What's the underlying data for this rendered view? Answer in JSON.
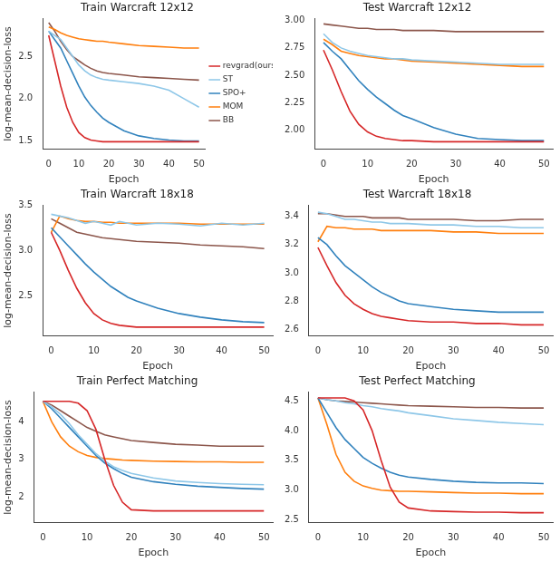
{
  "chart_data": [
    {
      "type": "line",
      "title": "Train Warcraft 12x12",
      "xlabel": "Epoch",
      "ylabel": "log-mean-decision-loss",
      "x": [
        0,
        2,
        4,
        6,
        8,
        10,
        12,
        14,
        16,
        18,
        20,
        25,
        30,
        35,
        40,
        45,
        50
      ],
      "xlim": [
        -2,
        52
      ],
      "xticks": [
        0,
        10,
        20,
        30,
        40,
        50
      ],
      "ylim": [
        1.4,
        2.95
      ],
      "yticks": [
        1.5,
        {
          "value": 2,
          "label": "2.0"
        },
        2.5
      ],
      "grid": false,
      "legend": "right",
      "series": [
        {
          "name": "revgrad(ours)",
          "color": "#d62728",
          "values": [
            2.75,
            2.45,
            2.15,
            1.9,
            1.72,
            1.6,
            1.54,
            1.51,
            1.5,
            1.49,
            1.49,
            1.49,
            1.49,
            1.49,
            1.49,
            1.49,
            1.49
          ]
        },
        {
          "name": "ST",
          "color": "#8ec7e8",
          "values": [
            2.8,
            2.75,
            2.7,
            2.6,
            2.5,
            2.4,
            2.33,
            2.28,
            2.25,
            2.23,
            2.22,
            2.2,
            2.18,
            2.15,
            2.1,
            2.0,
            1.9
          ]
        },
        {
          "name": "SPO+",
          "color": "#3182bd",
          "values": [
            2.8,
            2.7,
            2.6,
            2.45,
            2.3,
            2.15,
            2.02,
            1.92,
            1.84,
            1.77,
            1.72,
            1.62,
            1.56,
            1.53,
            1.51,
            1.5,
            1.5
          ]
        },
        {
          "name": "MOM",
          "color": "#ff7f0e",
          "values": [
            2.85,
            2.82,
            2.78,
            2.75,
            2.73,
            2.71,
            2.7,
            2.69,
            2.68,
            2.68,
            2.67,
            2.65,
            2.63,
            2.62,
            2.61,
            2.6,
            2.6
          ]
        },
        {
          "name": "BB",
          "color": "#8c564b",
          "values": [
            2.9,
            2.8,
            2.68,
            2.58,
            2.5,
            2.45,
            2.4,
            2.36,
            2.33,
            2.31,
            2.3,
            2.28,
            2.26,
            2.25,
            2.24,
            2.23,
            2.22
          ]
        }
      ]
    },
    {
      "type": "line",
      "title": "Test Warcraft 12x12",
      "xlabel": "Epoch",
      "x": [
        0,
        2,
        4,
        6,
        8,
        10,
        12,
        14,
        16,
        18,
        20,
        25,
        30,
        35,
        40,
        45,
        50
      ],
      "xlim": [
        -2,
        52
      ],
      "xticks": [
        0,
        10,
        20,
        30,
        40,
        50
      ],
      "ylim": [
        1.82,
        3.02
      ],
      "yticks": [
        {
          "value": 2,
          "label": "2.00"
        },
        {
          "value": 2.25,
          "label": "2.25"
        },
        {
          "value": 2.5,
          "label": "2.50"
        },
        {
          "value": 2.75,
          "label": "2.75"
        },
        {
          "value": 3,
          "label": "3.00"
        }
      ],
      "grid": false,
      "series": [
        {
          "name": "revgrad(ours)",
          "color": "#d62728",
          "values": [
            2.73,
            2.55,
            2.35,
            2.17,
            2.05,
            1.98,
            1.94,
            1.92,
            1.91,
            1.9,
            1.9,
            1.89,
            1.89,
            1.89,
            1.89,
            1.89,
            1.89
          ]
        },
        {
          "name": "ST",
          "color": "#8ec7e8",
          "values": [
            2.88,
            2.8,
            2.75,
            2.72,
            2.7,
            2.68,
            2.67,
            2.66,
            2.65,
            2.65,
            2.64,
            2.63,
            2.62,
            2.61,
            2.6,
            2.6,
            2.6
          ]
        },
        {
          "name": "SPO+",
          "color": "#3182bd",
          "values": [
            2.8,
            2.72,
            2.65,
            2.55,
            2.45,
            2.37,
            2.3,
            2.24,
            2.18,
            2.13,
            2.1,
            2.02,
            1.96,
            1.92,
            1.91,
            1.9,
            1.9
          ]
        },
        {
          "name": "MOM",
          "color": "#ff7f0e",
          "values": [
            2.83,
            2.78,
            2.72,
            2.7,
            2.68,
            2.67,
            2.66,
            2.65,
            2.65,
            2.64,
            2.63,
            2.62,
            2.61,
            2.6,
            2.59,
            2.58,
            2.58
          ]
        },
        {
          "name": "BB",
          "color": "#8c564b",
          "values": [
            2.97,
            2.96,
            2.95,
            2.94,
            2.93,
            2.93,
            2.92,
            2.92,
            2.92,
            2.91,
            2.91,
            2.91,
            2.9,
            2.9,
            2.9,
            2.9,
            2.9
          ]
        }
      ]
    },
    {
      "type": "line",
      "title": "Train Warcraft 18x18",
      "xlabel": "Epoch",
      "ylabel": "log-mean-decision-loss",
      "x": [
        0,
        2,
        4,
        6,
        8,
        10,
        12,
        14,
        16,
        18,
        20,
        25,
        30,
        35,
        40,
        45,
        50
      ],
      "xlim": [
        -2,
        52
      ],
      "xticks": [
        0,
        10,
        20,
        30,
        40,
        50
      ],
      "ylim": [
        2.05,
        3.5
      ],
      "yticks": [
        2.5,
        {
          "value": 3,
          "label": "3.0"
        },
        3.5
      ],
      "grid": false,
      "series": [
        {
          "name": "revgrad(ours)",
          "color": "#d62728",
          "values": [
            3.2,
            3.0,
            2.78,
            2.58,
            2.42,
            2.3,
            2.23,
            2.19,
            2.17,
            2.16,
            2.15,
            2.15,
            2.15,
            2.15,
            2.15,
            2.15,
            2.15
          ]
        },
        {
          "name": "ST",
          "color": "#8ec7e8",
          "values": [
            3.4,
            3.38,
            3.36,
            3.33,
            3.3,
            3.32,
            3.3,
            3.28,
            3.32,
            3.3,
            3.28,
            3.3,
            3.29,
            3.27,
            3.3,
            3.28,
            3.3
          ]
        },
        {
          "name": "SPO+",
          "color": "#3182bd",
          "values": [
            3.25,
            3.15,
            3.05,
            2.95,
            2.85,
            2.76,
            2.68,
            2.6,
            2.54,
            2.48,
            2.44,
            2.36,
            2.3,
            2.26,
            2.23,
            2.21,
            2.2
          ]
        },
        {
          "name": "MOM",
          "color": "#ff7f0e",
          "values": [
            3.2,
            3.38,
            3.35,
            3.33,
            3.32,
            3.32,
            3.31,
            3.31,
            3.3,
            3.3,
            3.3,
            3.3,
            3.3,
            3.29,
            3.29,
            3.29,
            3.29
          ]
        },
        {
          "name": "BB",
          "color": "#8c564b",
          "values": [
            3.35,
            3.3,
            3.25,
            3.2,
            3.18,
            3.16,
            3.14,
            3.13,
            3.12,
            3.11,
            3.1,
            3.09,
            3.08,
            3.06,
            3.05,
            3.04,
            3.02
          ]
        }
      ]
    },
    {
      "type": "line",
      "title": "Test Warcraft 18x18",
      "xlabel": "Epoch",
      "x": [
        0,
        2,
        4,
        6,
        8,
        10,
        12,
        14,
        16,
        18,
        20,
        25,
        30,
        35,
        40,
        45,
        50
      ],
      "xlim": [
        -2,
        52
      ],
      "xticks": [
        0,
        10,
        20,
        30,
        40,
        50
      ],
      "ylim": [
        2.55,
        3.48
      ],
      "yticks": [
        2.6,
        2.8,
        {
          "value": 3,
          "label": "3.0"
        },
        3.2,
        3.4
      ],
      "grid": false,
      "series": [
        {
          "name": "revgrad(ours)",
          "color": "#d62728",
          "values": [
            3.18,
            3.05,
            2.93,
            2.84,
            2.78,
            2.74,
            2.71,
            2.69,
            2.68,
            2.67,
            2.66,
            2.65,
            2.65,
            2.64,
            2.64,
            2.63,
            2.63
          ]
        },
        {
          "name": "ST",
          "color": "#8ec7e8",
          "values": [
            3.43,
            3.42,
            3.4,
            3.38,
            3.38,
            3.37,
            3.36,
            3.36,
            3.35,
            3.35,
            3.35,
            3.34,
            3.34,
            3.33,
            3.33,
            3.32,
            3.32
          ]
        },
        {
          "name": "SPO+",
          "color": "#3182bd",
          "values": [
            3.25,
            3.2,
            3.12,
            3.05,
            3.0,
            2.95,
            2.9,
            2.86,
            2.83,
            2.8,
            2.78,
            2.76,
            2.74,
            2.73,
            2.72,
            2.72,
            2.72
          ]
        },
        {
          "name": "MOM",
          "color": "#ff7f0e",
          "values": [
            3.22,
            3.33,
            3.32,
            3.32,
            3.31,
            3.31,
            3.31,
            3.3,
            3.3,
            3.3,
            3.3,
            3.3,
            3.29,
            3.29,
            3.28,
            3.28,
            3.28
          ]
        },
        {
          "name": "BB",
          "color": "#8c564b",
          "values": [
            3.42,
            3.42,
            3.41,
            3.4,
            3.4,
            3.4,
            3.39,
            3.39,
            3.39,
            3.39,
            3.38,
            3.38,
            3.38,
            3.37,
            3.37,
            3.38,
            3.38
          ]
        }
      ]
    },
    {
      "type": "line",
      "title": "Train Perfect Matching",
      "xlabel": "Epoch",
      "ylabel": "log-mean-decision-loss",
      "x": [
        0,
        2,
        4,
        6,
        8,
        10,
        12,
        14,
        16,
        18,
        20,
        25,
        30,
        35,
        40,
        45,
        50
      ],
      "xlim": [
        -2,
        52
      ],
      "xticks": [
        0,
        10,
        20,
        30,
        40,
        50
      ],
      "ylim": [
        1.3,
        4.8
      ],
      "yticks": [
        2,
        3,
        4
      ],
      "grid": false,
      "series": [
        {
          "name": "revgrad(ours)",
          "color": "#d62728",
          "values": [
            4.55,
            4.55,
            4.55,
            4.55,
            4.5,
            4.3,
            3.8,
            3.0,
            2.3,
            1.85,
            1.65,
            1.62,
            1.62,
            1.62,
            1.62,
            1.62,
            1.62
          ]
        },
        {
          "name": "ST",
          "color": "#8ec7e8",
          "values": [
            4.55,
            4.4,
            4.2,
            3.95,
            3.65,
            3.4,
            3.15,
            2.95,
            2.8,
            2.7,
            2.62,
            2.5,
            2.42,
            2.38,
            2.35,
            2.33,
            2.32
          ]
        },
        {
          "name": "SPO+",
          "color": "#3182bd",
          "values": [
            4.55,
            4.35,
            4.1,
            3.85,
            3.6,
            3.35,
            3.1,
            2.9,
            2.75,
            2.62,
            2.52,
            2.4,
            2.33,
            2.28,
            2.25,
            2.22,
            2.2
          ]
        },
        {
          "name": "MOM",
          "color": "#ff7f0e",
          "values": [
            4.55,
            4.0,
            3.6,
            3.35,
            3.2,
            3.1,
            3.05,
            3.02,
            3.0,
            2.98,
            2.97,
            2.95,
            2.94,
            2.93,
            2.93,
            2.92,
            2.92
          ]
        },
        {
          "name": "BB",
          "color": "#8c564b",
          "values": [
            4.55,
            4.45,
            4.3,
            4.15,
            4.0,
            3.85,
            3.75,
            3.65,
            3.6,
            3.55,
            3.5,
            3.45,
            3.4,
            3.38,
            3.35,
            3.35,
            3.35
          ]
        }
      ]
    },
    {
      "type": "line",
      "title": "Test Perfect Matching",
      "xlabel": "Epoch",
      "x": [
        0,
        2,
        4,
        6,
        8,
        10,
        12,
        14,
        16,
        18,
        20,
        25,
        30,
        35,
        40,
        45,
        50
      ],
      "xlim": [
        -2,
        52
      ],
      "xticks": [
        0,
        10,
        20,
        30,
        40,
        50
      ],
      "ylim": [
        2.45,
        4.65
      ],
      "yticks": [
        2.5,
        {
          "value": 3,
          "label": "3.0"
        },
        3.5,
        {
          "value": 4,
          "label": "4.0"
        },
        4.5
      ],
      "grid": false,
      "series": [
        {
          "name": "revgrad(ours)",
          "color": "#d62728",
          "values": [
            4.55,
            4.55,
            4.55,
            4.55,
            4.5,
            4.35,
            4.0,
            3.5,
            3.05,
            2.8,
            2.7,
            2.65,
            2.64,
            2.63,
            2.63,
            2.62,
            2.62
          ]
        },
        {
          "name": "ST",
          "color": "#8ec7e8",
          "values": [
            4.55,
            4.52,
            4.5,
            4.47,
            4.45,
            4.42,
            4.4,
            4.37,
            4.35,
            4.33,
            4.3,
            4.25,
            4.2,
            4.17,
            4.14,
            4.12,
            4.1
          ]
        },
        {
          "name": "SPO+",
          "color": "#3182bd",
          "values": [
            4.55,
            4.3,
            4.05,
            3.85,
            3.7,
            3.55,
            3.45,
            3.37,
            3.3,
            3.25,
            3.22,
            3.18,
            3.15,
            3.13,
            3.12,
            3.12,
            3.11
          ]
        },
        {
          "name": "MOM",
          "color": "#ff7f0e",
          "values": [
            4.55,
            4.1,
            3.6,
            3.3,
            3.15,
            3.07,
            3.03,
            3.0,
            2.99,
            2.98,
            2.98,
            2.97,
            2.96,
            2.95,
            2.95,
            2.94,
            2.94
          ]
        },
        {
          "name": "BB",
          "color": "#8c564b",
          "values": [
            4.55,
            4.52,
            4.5,
            4.49,
            4.48,
            4.47,
            4.46,
            4.45,
            4.44,
            4.43,
            4.42,
            4.41,
            4.4,
            4.39,
            4.39,
            4.38,
            4.38
          ]
        }
      ]
    }
  ]
}
